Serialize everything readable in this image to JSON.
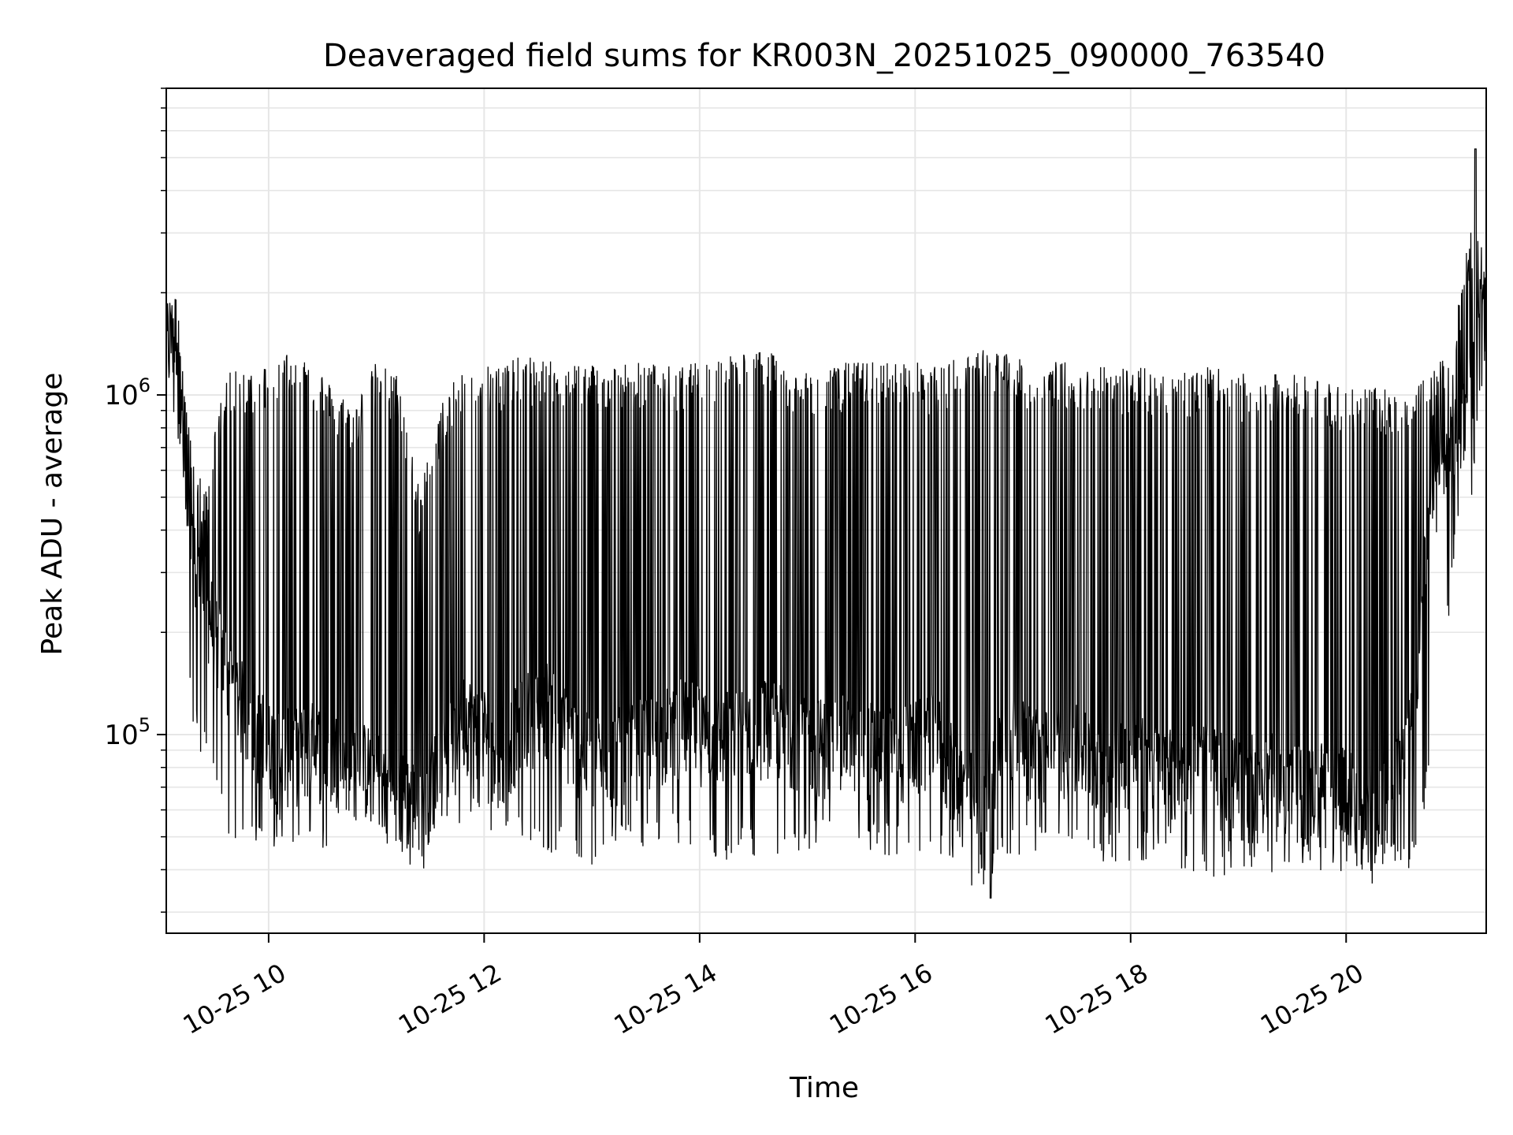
{
  "chart_data": {
    "type": "line",
    "title": "Deaveraged field sums for KR003N_20251025_090000_763540",
    "xlabel": "Time",
    "ylabel": "Peak ADU - average",
    "yscale": "log",
    "xlim": [
      9.05,
      21.3
    ],
    "ylim": [
      26000,
      8000000
    ],
    "grid": true,
    "line_color": "#000000",
    "x_ticks": [
      {
        "value": 10,
        "label": "10-25 10"
      },
      {
        "value": 12,
        "label": "10-25 12"
      },
      {
        "value": 14,
        "label": "10-25 14"
      },
      {
        "value": 16,
        "label": "10-25 16"
      },
      {
        "value": 18,
        "label": "10-25 18"
      },
      {
        "value": 20,
        "label": "10-25 20"
      }
    ],
    "y_ticks": [
      {
        "value": 100000,
        "base": "10",
        "exp": "5"
      },
      {
        "value": 1000000,
        "base": "10",
        "exp": "6"
      }
    ],
    "series": [
      {
        "name": "field sums",
        "envelope": {
          "x_hours": [
            9.05,
            9.15,
            9.25,
            9.4,
            9.6,
            9.8,
            10.0,
            10.2,
            10.4,
            10.6,
            10.8,
            11.0,
            11.2,
            11.4,
            11.6,
            11.8,
            12.0,
            12.2,
            12.4,
            12.6,
            12.8,
            13.0,
            13.2,
            13.4,
            13.6,
            13.8,
            14.0,
            14.2,
            14.4,
            14.6,
            14.8,
            15.0,
            15.2,
            15.4,
            15.6,
            15.8,
            16.0,
            16.2,
            16.4,
            16.6,
            16.8,
            17.0,
            17.2,
            17.4,
            17.6,
            17.8,
            18.0,
            18.2,
            18.4,
            18.6,
            18.8,
            19.0,
            19.2,
            19.4,
            19.6,
            19.8,
            20.0,
            20.2,
            20.4,
            20.6,
            20.8,
            21.0,
            21.15,
            21.3
          ],
          "base": [
            1300000,
            1500000,
            350000,
            250000,
            150000,
            110000,
            90000,
            85000,
            90000,
            85000,
            80000,
            75000,
            65000,
            60000,
            80000,
            110000,
            100000,
            90000,
            110000,
            120000,
            95000,
            80000,
            85000,
            90000,
            95000,
            105000,
            100000,
            95000,
            100000,
            105000,
            100000,
            95000,
            90000,
            95000,
            90000,
            85000,
            90000,
            95000,
            70000,
            60000,
            100000,
            90000,
            85000,
            90000,
            85000,
            80000,
            85000,
            80000,
            75000,
            80000,
            75000,
            70000,
            75000,
            70000,
            65000,
            70000,
            65000,
            60000,
            60000,
            100000,
            500000,
            700000,
            1000000,
            1500000
          ],
          "peak": [
            1800000,
            2100000,
            800000,
            500000,
            1100000,
            1150000,
            1200000,
            1300000,
            1250000,
            1000000,
            900000,
            1200000,
            1100000,
            500000,
            900000,
            1150000,
            1200000,
            1200000,
            1250000,
            1200000,
            1200000,
            1200000,
            1180000,
            1200000,
            1180000,
            1150000,
            1200000,
            1250000,
            1300000,
            1300000,
            1200000,
            1100000,
            1150000,
            1200000,
            1200000,
            1200000,
            1200000,
            1150000,
            1250000,
            1300000,
            1300000,
            1200000,
            1200000,
            1200000,
            1150000,
            1200000,
            1150000,
            1150000,
            1150000,
            1150000,
            1150000,
            1100000,
            1100000,
            1100000,
            1100000,
            1050000,
            1050000,
            1000000,
            1000000,
            1000000,
            1100000,
            1500000,
            3000000,
            2500000
          ],
          "low": [
            800000,
            900000,
            140000,
            90000,
            55000,
            55000,
            50000,
            52000,
            52000,
            47000,
            60000,
            50000,
            43000,
            42000,
            55000,
            60000,
            55000,
            58000,
            55000,
            50000,
            45000,
            40000,
            50000,
            48000,
            55000,
            50000,
            48000,
            45000,
            50000,
            40000,
            48000,
            50000,
            52000,
            55000,
            50000,
            48000,
            50000,
            48000,
            45000,
            35000,
            45000,
            50000,
            48000,
            47000,
            45000,
            47000,
            46000,
            46000,
            45000,
            43000,
            42000,
            43000,
            45000,
            42000,
            45000,
            43000,
            42000,
            40000,
            42000,
            45000,
            80000,
            350000,
            500000,
            900000
          ]
        },
        "spike_max": {
          "x_hour": 21.2,
          "value": 5300000
        },
        "dip_min": {
          "x_hour": 16.7,
          "value": 33000
        }
      }
    ]
  }
}
